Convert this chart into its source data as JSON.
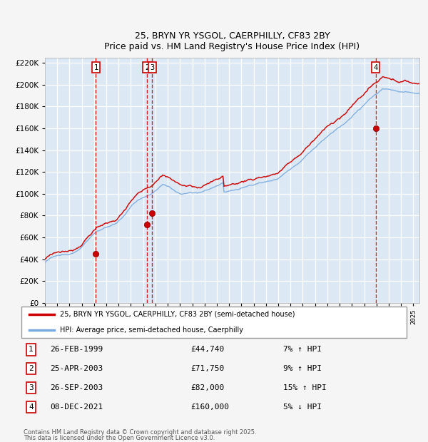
{
  "title_line1": "25, BRYN YR YSGOL, CAERPHILLY, CF83 2BY",
  "title_line2": "Price paid vs. HM Land Registry's House Price Index (HPI)",
  "plot_bg_color": "#dce9f5",
  "grid_color": "#ffffff",
  "red_line_color": "#cc0000",
  "blue_line_color": "#7aaadd",
  "sale_marker_color": "#cc0000",
  "dashed_line_color": "#cc0000",
  "x_start_year": 1995,
  "x_end_year": 2025,
  "y_min": 0,
  "y_max": 220000,
  "y_tick_step": 20000,
  "sale_events": [
    {
      "label": "1",
      "date_decimal": 1999.15,
      "price": 44740,
      "pct": "7%",
      "dir": "↑",
      "date_str": "26-FEB-1999"
    },
    {
      "label": "2",
      "date_decimal": 2003.32,
      "price": 71750,
      "pct": "9%",
      "dir": "↑",
      "date_str": "25-APR-2003"
    },
    {
      "label": "3",
      "date_decimal": 2003.74,
      "price": 82000,
      "pct": "15%",
      "dir": "↑",
      "date_str": "26-SEP-2003"
    },
    {
      "label": "4",
      "date_decimal": 2021.94,
      "price": 160000,
      "pct": "5%",
      "dir": "↓",
      "date_str": "08-DEC-2021"
    }
  ],
  "legend_entries": [
    {
      "label": "25, BRYN YR YSGOL, CAERPHILLY, CF83 2BY (semi-detached house)",
      "color": "#cc0000"
    },
    {
      "label": "HPI: Average price, semi-detached house, Caerphilly",
      "color": "#7aaadd"
    }
  ],
  "footer_line1": "Contains HM Land Registry data © Crown copyright and database right 2025.",
  "footer_line2": "This data is licensed under the Open Government Licence v3.0."
}
